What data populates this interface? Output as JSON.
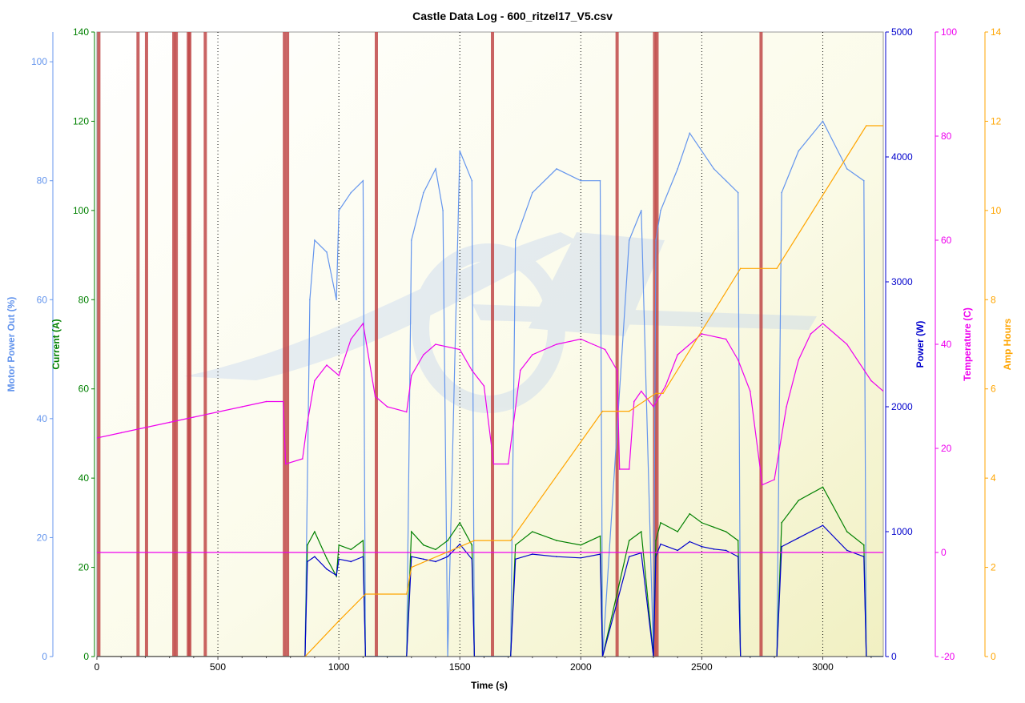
{
  "chart_data": {
    "type": "line",
    "title": "Castle Data Log - 600_ritzel17_V5.csv",
    "xlabel": "Time (s)",
    "xlim": [
      0,
      3250
    ],
    "x_ticks": [
      0,
      500,
      1000,
      1500,
      2000,
      2500,
      3000
    ],
    "axes": [
      {
        "key": "motor",
        "label": "Motor Power Out (%)",
        "color": "#6495ED",
        "ylim": [
          0,
          105
        ],
        "ticks": [
          0,
          20,
          40,
          60,
          80,
          100
        ]
      },
      {
        "key": "current",
        "label": "Current (A)",
        "color": "#008000",
        "ylim": [
          0,
          140
        ],
        "ticks": [
          0,
          20,
          40,
          60,
          80,
          100,
          120,
          140
        ]
      },
      {
        "key": "power",
        "label": "Power (W)",
        "color": "#0000CC",
        "ylim": [
          0,
          5000
        ],
        "ticks": [
          0,
          1000,
          2000,
          3000,
          4000,
          5000
        ]
      },
      {
        "key": "temp",
        "label": "Temperature (C)",
        "color": "#EE00EE",
        "ylim": [
          -20,
          100
        ],
        "ticks": [
          -20,
          0,
          20,
          40,
          60,
          80,
          100
        ]
      },
      {
        "key": "amph",
        "label": "Amp Hours",
        "color": "#FFA500",
        "ylim": [
          0,
          14
        ],
        "ticks": [
          0,
          2,
          4,
          6,
          8,
          10,
          12,
          14
        ]
      }
    ],
    "series": [
      {
        "name": "Motor Power Out (%)",
        "axis": "motor",
        "color": "#6495ED",
        "x": [
          0,
          860,
          880,
          900,
          950,
          990,
          1000,
          1050,
          1100,
          1110,
          1280,
          1300,
          1350,
          1400,
          1430,
          1450,
          1500,
          1550,
          1560,
          1710,
          1730,
          1800,
          1900,
          2000,
          2080,
          2090,
          2200,
          2250,
          2300,
          2310,
          2330,
          2400,
          2450,
          2500,
          2550,
          2600,
          2650,
          2660,
          2810,
          2830,
          2900,
          3000,
          3100,
          3170,
          3180,
          3250
        ],
        "y": [
          0,
          0,
          60,
          70,
          68,
          60,
          75,
          78,
          80,
          0,
          0,
          70,
          78,
          82,
          75,
          0,
          85,
          80,
          0,
          0,
          70,
          78,
          82,
          80,
          80,
          0,
          70,
          75,
          0,
          70,
          75,
          82,
          88,
          85,
          82,
          80,
          78,
          0,
          0,
          78,
          85,
          90,
          82,
          80,
          0,
          0
        ]
      },
      {
        "name": "Current (A)",
        "axis": "current",
        "color": "#008000",
        "x": [
          0,
          860,
          870,
          900,
          950,
          990,
          1000,
          1050,
          1100,
          1110,
          1280,
          1300,
          1350,
          1400,
          1450,
          1500,
          1550,
          1560,
          1710,
          1730,
          1800,
          1900,
          2000,
          2080,
          2090,
          2200,
          2250,
          2300,
          2310,
          2330,
          2400,
          2450,
          2500,
          2550,
          2600,
          2650,
          2660,
          2810,
          2830,
          2900,
          3000,
          3100,
          3170,
          3180,
          3250
        ],
        "y": [
          0,
          0,
          25,
          28,
          22,
          18,
          25,
          24,
          26,
          0,
          0,
          28,
          25,
          24,
          26,
          30,
          25,
          0,
          0,
          25,
          28,
          26,
          25,
          27,
          0,
          26,
          28,
          0,
          26,
          30,
          28,
          32,
          30,
          29,
          28,
          26,
          0,
          0,
          30,
          35,
          38,
          28,
          25,
          0,
          0
        ]
      },
      {
        "name": "Power (W)",
        "axis": "power",
        "color": "#0000CC",
        "x": [
          0,
          860,
          870,
          900,
          950,
          990,
          1000,
          1050,
          1100,
          1110,
          1280,
          1300,
          1350,
          1400,
          1450,
          1500,
          1550,
          1560,
          1710,
          1730,
          1800,
          1900,
          2000,
          2080,
          2090,
          2200,
          2250,
          2300,
          2310,
          2330,
          2400,
          2450,
          2500,
          2550,
          2600,
          2650,
          2660,
          2810,
          2830,
          2900,
          3000,
          3100,
          3170,
          3180,
          3250
        ],
        "y": [
          0,
          0,
          760,
          800,
          700,
          650,
          780,
          760,
          800,
          0,
          0,
          800,
          780,
          760,
          800,
          900,
          780,
          0,
          0,
          780,
          820,
          800,
          790,
          820,
          0,
          800,
          830,
          0,
          800,
          900,
          850,
          920,
          880,
          860,
          850,
          800,
          0,
          0,
          880,
          950,
          1050,
          850,
          800,
          0,
          0
        ]
      },
      {
        "name": "Temperature (C)",
        "axis": "temp",
        "color": "#EE00EE",
        "x": [
          0,
          100,
          200,
          300,
          400,
          500,
          600,
          700,
          770,
          780,
          850,
          870,
          900,
          950,
          1000,
          1050,
          1100,
          1150,
          1200,
          1280,
          1300,
          1350,
          1400,
          1500,
          1550,
          1600,
          1640,
          1700,
          1750,
          1800,
          1900,
          2000,
          2050,
          2100,
          2150,
          2160,
          2200,
          2220,
          2250,
          2300,
          2350,
          2400,
          2500,
          2600,
          2650,
          2700,
          2750,
          2800,
          2850,
          2900,
          2950,
          3000,
          3100,
          3200,
          3250
        ],
        "y": [
          22,
          23,
          24,
          25,
          26,
          27,
          28,
          29,
          29,
          17,
          18,
          25,
          33,
          36,
          34,
          41,
          44,
          30,
          28,
          27,
          34,
          38,
          40,
          39,
          35,
          32,
          17,
          17,
          35,
          38,
          40,
          41,
          40,
          39,
          35,
          16,
          16,
          29,
          31,
          28,
          32,
          38,
          42,
          41,
          37,
          31,
          13,
          14,
          28,
          37,
          42,
          44,
          40,
          33,
          31
        ]
      },
      {
        "name": "Temperature (C) baseline",
        "axis": "temp",
        "color": "#EE00EE",
        "x": [
          0,
          3250
        ],
        "y": [
          0,
          0
        ]
      },
      {
        "name": "Amp Hours",
        "axis": "amph",
        "color": "#FFA500",
        "x": [
          0,
          860,
          1000,
          1110,
          1280,
          1300,
          1560,
          1710,
          2090,
          2200,
          2310,
          2340,
          2660,
          2810,
          3180,
          3250
        ],
        "y": [
          0,
          0,
          0.8,
          1.4,
          1.4,
          2.0,
          2.6,
          2.6,
          5.5,
          5.5,
          5.9,
          5.9,
          8.7,
          8.7,
          11.9,
          11.9
        ]
      }
    ],
    "event_markers_x": [
      8,
      170,
      205,
      318,
      328,
      378,
      384,
      448,
      775,
      788,
      1155,
      1635,
      2150,
      2305,
      2315,
      2745
    ],
    "vertical_gridlines_x": [
      500,
      1000,
      1500,
      2000,
      2500,
      3000
    ],
    "grid": true
  }
}
